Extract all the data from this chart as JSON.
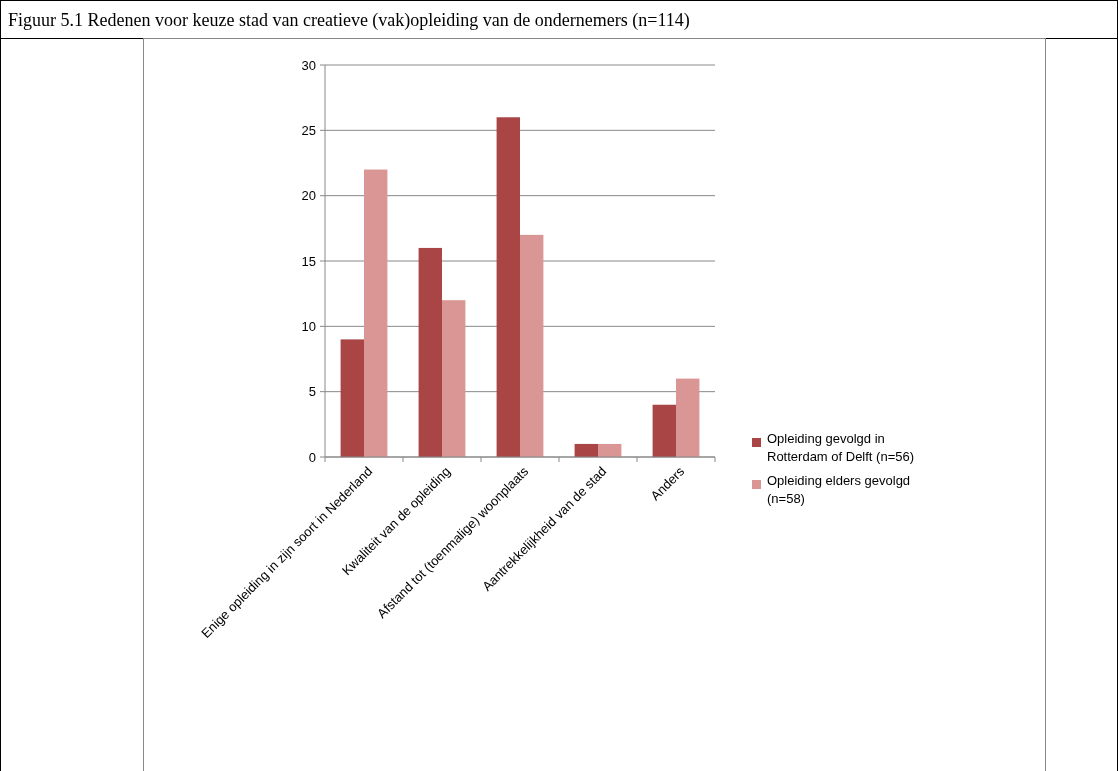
{
  "chart_data": {
    "type": "bar",
    "title": "Figuur 5.1 Redenen voor keuze stad van creatieve (vak)opleiding van de ondernemers (n=114)",
    "categories": [
      "Enige opleiding in zijn soort in Nederland",
      "Kwaliteit van de opleiding",
      "Afstand tot (toenmalige) woonplaats",
      "Aantrekkelijkheid van de stad",
      "Anders"
    ],
    "series": [
      {
        "name": "Opleiding gevolgd in Rotterdam of Delft (n=56)",
        "color": "#a94545",
        "values": [
          9,
          16,
          26,
          1,
          4
        ]
      },
      {
        "name": "Opleiding elders gevolgd (n=58)",
        "color": "#d99694",
        "values": [
          22,
          12,
          17,
          1,
          6
        ]
      }
    ],
    "ylim": [
      0,
      30
    ],
    "yticks": [
      0,
      5,
      10,
      15,
      20,
      25,
      30
    ],
    "grid": "y",
    "legend": "right"
  }
}
